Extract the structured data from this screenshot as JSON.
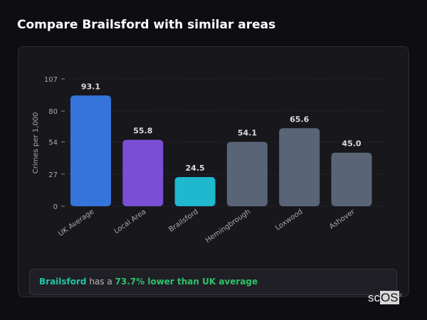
{
  "title": "Compare Brailsford with similar areas",
  "chart_data": {
    "type": "bar",
    "categories": [
      "UK Average",
      "Local Area",
      "Brailsford",
      "Hemingbrough",
      "Loxwood",
      "Ashover"
    ],
    "values": [
      93.1,
      55.8,
      24.5,
      54.1,
      65.6,
      45.0
    ],
    "value_labels": [
      "93.1",
      "55.8",
      "24.5",
      "54.1",
      "65.6",
      "45.0"
    ],
    "colors": [
      "#3574db",
      "#7a4fd6",
      "#1fb8cf",
      "#5a6477",
      "#5a6477",
      "#5a6477"
    ],
    "ylabel": "Crimes per 1,000",
    "yticks": [
      0,
      27,
      54,
      80,
      107
    ],
    "ylim": [
      0,
      107
    ],
    "grid": true
  },
  "summary": {
    "area": "Brailsford",
    "middle": " has a ",
    "highlight": "73.7% lower than UK average"
  },
  "logo": {
    "prefix": "sc",
    "main": "OS",
    "mark": "®"
  }
}
